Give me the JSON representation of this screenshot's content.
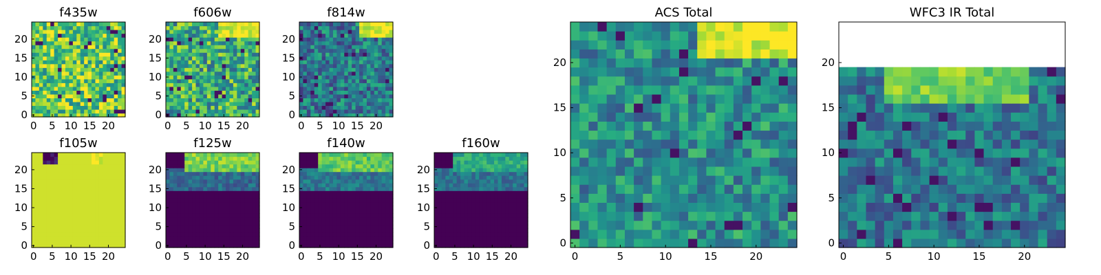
{
  "colormap": {
    "name": "viridis",
    "stops": [
      "#440154",
      "#472c7a",
      "#3b518b",
      "#2c718e",
      "#21908d",
      "#27ad81",
      "#5cc863",
      "#aadc32",
      "#fde725"
    ]
  },
  "chart_data": [
    {
      "type": "heatmap",
      "title": "f435w",
      "grid_size": 25,
      "xlim": [
        0,
        24
      ],
      "ylim": [
        0,
        24
      ],
      "xticks": [
        "0",
        "5",
        "10",
        "15",
        "20"
      ],
      "yticks": [
        "0",
        "5",
        "10",
        "15",
        "20"
      ],
      "background_level": 0.75,
      "noise": 0.3,
      "description_regions": []
    },
    {
      "type": "heatmap",
      "title": "f606w",
      "grid_size": 25,
      "xlim": [
        0,
        24
      ],
      "ylim": [
        0,
        24
      ],
      "xticks": [
        "0",
        "5",
        "10",
        "15",
        "20"
      ],
      "yticks": [
        "0",
        "5",
        "10",
        "15",
        "20"
      ],
      "background_level": 0.62,
      "noise": 0.3,
      "description_regions": [
        {
          "x": [
            14,
            24
          ],
          "y": [
            21,
            24
          ],
          "level": 0.95
        }
      ]
    },
    {
      "type": "heatmap",
      "title": "f814w",
      "grid_size": 25,
      "xlim": [
        0,
        24
      ],
      "ylim": [
        0,
        24
      ],
      "xticks": [
        "0",
        "5",
        "10",
        "15",
        "20"
      ],
      "yticks": [
        "0",
        "5",
        "10",
        "15",
        "20"
      ],
      "background_level": 0.42,
      "noise": 0.25,
      "description_regions": [
        {
          "x": [
            16,
            24
          ],
          "y": [
            21,
            24
          ],
          "level": 0.95
        }
      ]
    },
    {
      "type": "heatmap",
      "title": "f105w",
      "grid_size": 25,
      "xlim": [
        0,
        24
      ],
      "ylim": [
        0,
        24
      ],
      "xticks": [
        "0",
        "5",
        "10",
        "15",
        "20"
      ],
      "yticks": [
        "0",
        "5",
        "10",
        "15",
        "20"
      ],
      "background_level": 0.93,
      "noise": 0.0,
      "description_regions": [
        {
          "x": [
            3,
            6
          ],
          "y": [
            22,
            24
          ],
          "level": 0.05
        },
        {
          "x": [
            16,
            18
          ],
          "y": [
            22,
            24
          ],
          "level": 1.0
        }
      ]
    },
    {
      "type": "heatmap",
      "title": "f125w",
      "grid_size": 25,
      "xlim": [
        0,
        24
      ],
      "ylim": [
        0,
        24
      ],
      "xticks": [
        "0",
        "5",
        "10",
        "15",
        "20"
      ],
      "yticks": [
        "0",
        "5",
        "10",
        "15",
        "20"
      ],
      "background_level": 0.0,
      "noise": 0.0,
      "description_regions": [
        {
          "x": [
            0,
            24
          ],
          "y": [
            15,
            20
          ],
          "level": 0.35
        },
        {
          "x": [
            5,
            24
          ],
          "y": [
            20,
            24
          ],
          "level": 0.8
        }
      ]
    },
    {
      "type": "heatmap",
      "title": "f140w",
      "grid_size": 25,
      "xlim": [
        0,
        24
      ],
      "ylim": [
        0,
        24
      ],
      "xticks": [
        "0",
        "5",
        "10",
        "15",
        "20"
      ],
      "yticks": [
        "0",
        "5",
        "10",
        "15",
        "20"
      ],
      "background_level": 0.0,
      "noise": 0.0,
      "description_regions": [
        {
          "x": [
            0,
            24
          ],
          "y": [
            15,
            20
          ],
          "level": 0.4
        },
        {
          "x": [
            5,
            24
          ],
          "y": [
            20,
            24
          ],
          "level": 0.75
        }
      ]
    },
    {
      "type": "heatmap",
      "title": "f160w",
      "grid_size": 25,
      "xlim": [
        0,
        24
      ],
      "ylim": [
        0,
        24
      ],
      "xticks": [
        "0",
        "5",
        "10",
        "15",
        "20"
      ],
      "yticks": [
        "0",
        "5",
        "10",
        "15",
        "20"
      ],
      "background_level": 0.0,
      "noise": 0.0,
      "description_regions": [
        {
          "x": [
            0,
            24
          ],
          "y": [
            15,
            20
          ],
          "level": 0.38
        },
        {
          "x": [
            5,
            24
          ],
          "y": [
            20,
            24
          ],
          "level": 0.6
        }
      ]
    },
    {
      "type": "heatmap",
      "title": "ACS Total",
      "grid_size": 25,
      "xlim": [
        0,
        24
      ],
      "ylim": [
        0,
        24
      ],
      "xticks": [
        "0",
        "5",
        "10",
        "15",
        "20"
      ],
      "yticks": [
        "0",
        "5",
        "10",
        "15",
        "20"
      ],
      "background_level": 0.5,
      "noise": 0.22,
      "description_regions": [
        {
          "x": [
            14,
            24
          ],
          "y": [
            21,
            24
          ],
          "level": 0.95
        }
      ]
    },
    {
      "type": "heatmap",
      "title": "WFC3 IR Total",
      "grid_size": 25,
      "xlim": [
        0,
        24
      ],
      "ylim": [
        0,
        24
      ],
      "xticks": [
        "0",
        "5",
        "10",
        "15",
        "20"
      ],
      "yticks": [
        "0",
        "5",
        "10",
        "15",
        "20"
      ],
      "background_level": 0.4,
      "noise": 0.2,
      "description_regions": [
        {
          "x": [
            0,
            24
          ],
          "y": [
            20,
            24
          ],
          "level": -1
        },
        {
          "x": [
            5,
            20
          ],
          "y": [
            16,
            19
          ],
          "level": 0.8
        }
      ]
    }
  ]
}
